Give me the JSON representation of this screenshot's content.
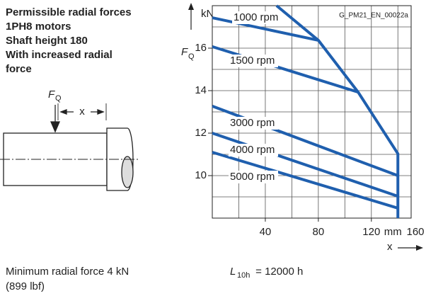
{
  "chart_data": {
    "type": "line",
    "title_lines": [
      "Permissible radial forces",
      "1PH8 motors",
      "Shaft height 180",
      "With increased radial",
      "force"
    ],
    "code": "G_PM21_EN_00022a",
    "y_unit": "kN",
    "y_label": "F",
    "y_label_sub": "Q",
    "x_label": "x",
    "x_unit": "mm",
    "diagram_force": "F",
    "diagram_force_sub": "Q",
    "diagram_x": "x",
    "xlim": [
      0,
      150
    ],
    "xticks": [
      40,
      80,
      120,
      160
    ],
    "ylim": [
      8,
      18
    ],
    "yticks": [
      10,
      12,
      14,
      16
    ],
    "grid": true,
    "series": [
      {
        "name": "1000 rpm",
        "color": "#1f5fae",
        "x": [
          0,
          80
        ],
        "values": [
          17.43,
          16.37
        ]
      },
      {
        "name": "1500 rpm",
        "color": "#1f5fae",
        "x": [
          0,
          110
        ],
        "values": [
          16.07,
          13.93
        ]
      },
      {
        "name": "3000 rpm",
        "color": "#1f5fae",
        "x": [
          0,
          140
        ],
        "values": [
          13.27,
          10.0
        ]
      },
      {
        "name": "4000 rpm",
        "color": "#1f5fae",
        "x": [
          0,
          140
        ],
        "values": [
          12.0,
          9.03
        ]
      },
      {
        "name": "5000 rpm",
        "color": "#1f5fae",
        "x": [
          0,
          140
        ],
        "values": [
          11.1,
          8.47
        ]
      },
      {
        "color": "#1f5fae",
        "x": [
          48.5,
          80,
          110,
          140,
          140
        ],
        "values": [
          18,
          16.37,
          13.93,
          11.03,
          8
        ]
      }
    ],
    "notes": [
      "Minimum radial force 4 kN",
      "(899 lbf)"
    ],
    "life_label": "L",
    "life_sub": "10h",
    "life_value": " = 12000 h"
  }
}
